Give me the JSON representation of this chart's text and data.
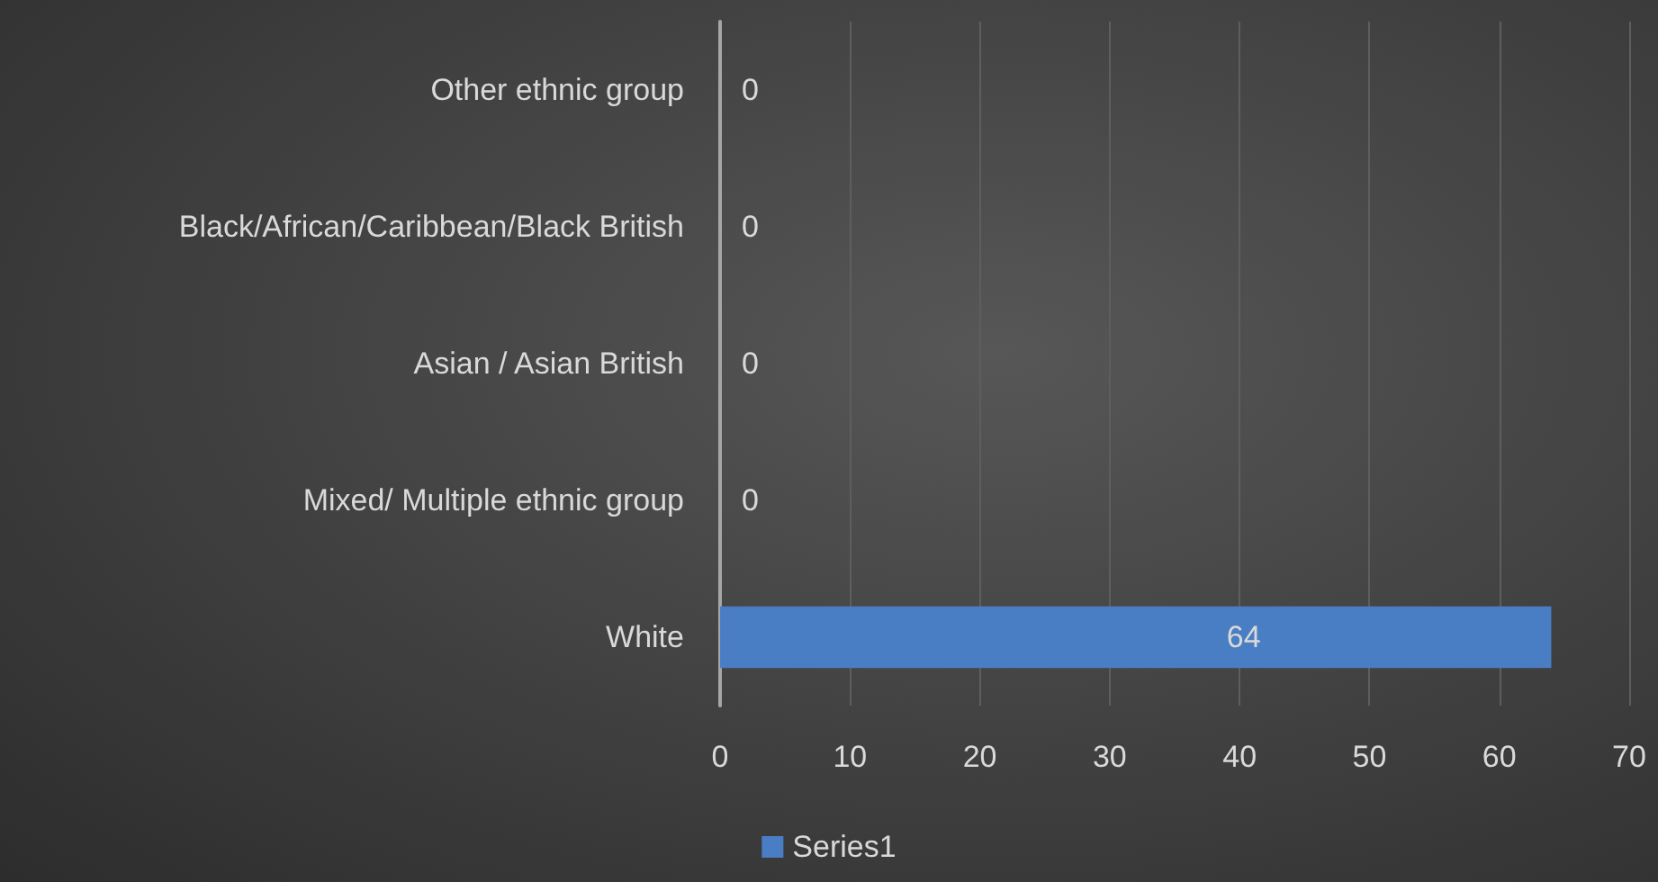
{
  "chart_data": {
    "type": "bar",
    "orientation": "horizontal",
    "categories": [
      "Other ethnic group",
      "Black/African/Caribbean/Black British",
      "Asian / Asian British",
      "Mixed/ Multiple ethnic group",
      "White"
    ],
    "series": [
      {
        "name": "Series1",
        "color": "#4a7ec4",
        "values": [
          0,
          0,
          0,
          0,
          64
        ]
      }
    ],
    "xlim": [
      0,
      70
    ],
    "xticks": [
      0,
      10,
      20,
      30,
      40,
      50,
      60,
      70
    ],
    "grid": "x",
    "legend": "bottom",
    "data_labels": true
  }
}
